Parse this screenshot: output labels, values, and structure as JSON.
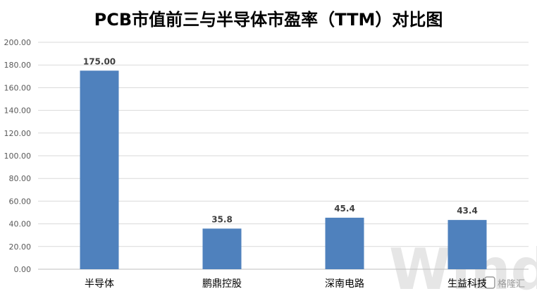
{
  "chart_data": {
    "type": "bar",
    "title": "PCB市值前三与半导体市盈率（TTM）对比图",
    "categories": [
      "半导体",
      "鹏鼎控股",
      "深南电路",
      "生益科技"
    ],
    "values": [
      175.0,
      35.8,
      45.4,
      43.4
    ],
    "data_labels": [
      "175.00",
      "35.8",
      "45.4",
      "43.4"
    ],
    "ylim": [
      0,
      200
    ],
    "yticks": [
      "0.00",
      "20.00",
      "40.00",
      "60.00",
      "80.00",
      "100.00",
      "120.00",
      "140.00",
      "160.00",
      "180.00",
      "200.00"
    ],
    "grid": true,
    "bar_color": "#4f81bd",
    "xlabel": "",
    "ylabel": ""
  },
  "watermark": {
    "text": "Wind",
    "logo_text": "格隆汇"
  }
}
